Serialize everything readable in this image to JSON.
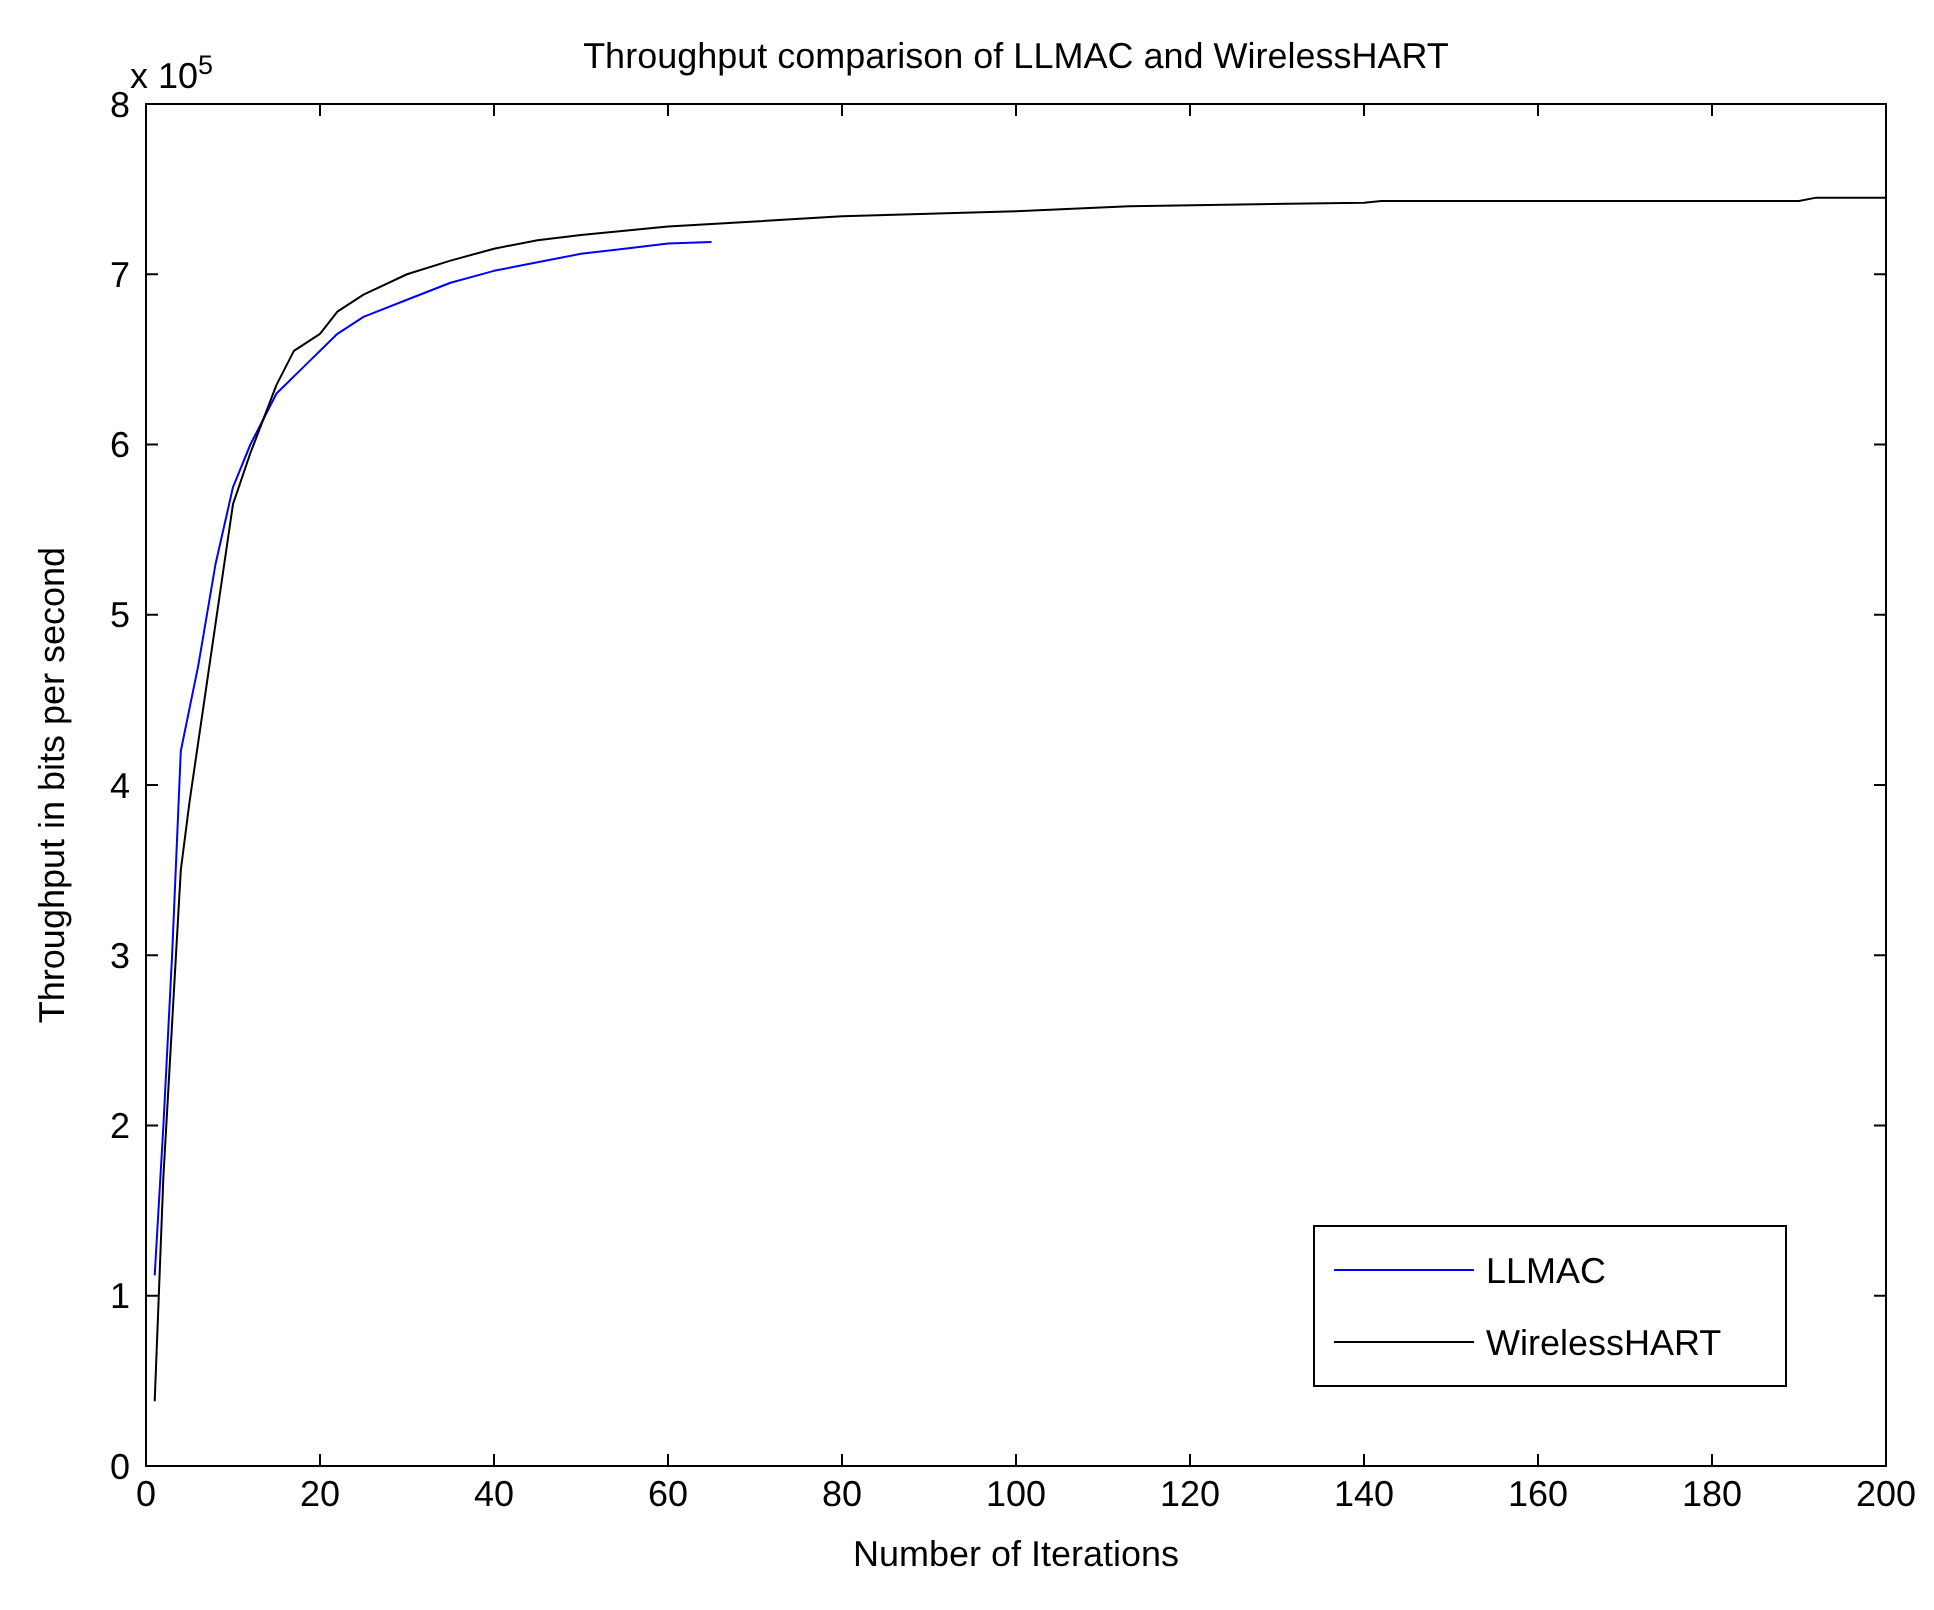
{
  "chart_data": {
    "type": "line",
    "title": "Throughput comparison of LLMAC and WirelessHART",
    "xlabel": "Number of Iterations",
    "ylabel": "Throughput in bits per second",
    "annotations": [
      "x 10$^{5}$"
    ],
    "xlim": [
      0,
      200
    ],
    "xticks": [
      0,
      20,
      40,
      60,
      80,
      100,
      120,
      140,
      160,
      180,
      200
    ],
    "ylim": [
      0,
      8
    ],
    "yticks": [
      0,
      1,
      2,
      3,
      4,
      5,
      6,
      7,
      8
    ],
    "legend": "bottom right",
    "grid": false,
    "marker": "none",
    "line_style": "solid",
    "series": [
      {
        "name": "LLMAC",
        "color": "#0000ff",
        "x": [
          1,
          2,
          3,
          4,
          6,
          8,
          10,
          12,
          15,
          18,
          22,
          25,
          30,
          35,
          40,
          45,
          50,
          55,
          60,
          65
        ],
        "values": [
          1.12,
          2.0,
          3.0,
          4.2,
          4.7,
          5.3,
          5.75,
          6.0,
          6.3,
          6.45,
          6.65,
          6.75,
          6.85,
          6.95,
          7.02,
          7.07,
          7.12,
          7.15,
          7.18,
          7.19
        ]
      },
      {
        "name": "WirelessHART",
        "color": "#000000",
        "x": [
          1,
          2,
          3,
          4,
          5,
          7,
          9,
          10,
          12,
          15,
          17,
          20,
          22,
          25,
          30,
          35,
          40,
          45,
          50,
          60,
          70,
          80,
          100,
          113,
          140,
          142,
          190,
          192,
          200
        ],
        "values": [
          0.38,
          1.7,
          2.6,
          3.5,
          3.9,
          4.6,
          5.3,
          5.65,
          5.95,
          6.35,
          6.55,
          6.65,
          6.78,
          6.88,
          7.0,
          7.08,
          7.15,
          7.2,
          7.23,
          7.28,
          7.31,
          7.34,
          7.37,
          7.4,
          7.42,
          7.43,
          7.43,
          7.45,
          7.45
        ]
      }
    ]
  }
}
